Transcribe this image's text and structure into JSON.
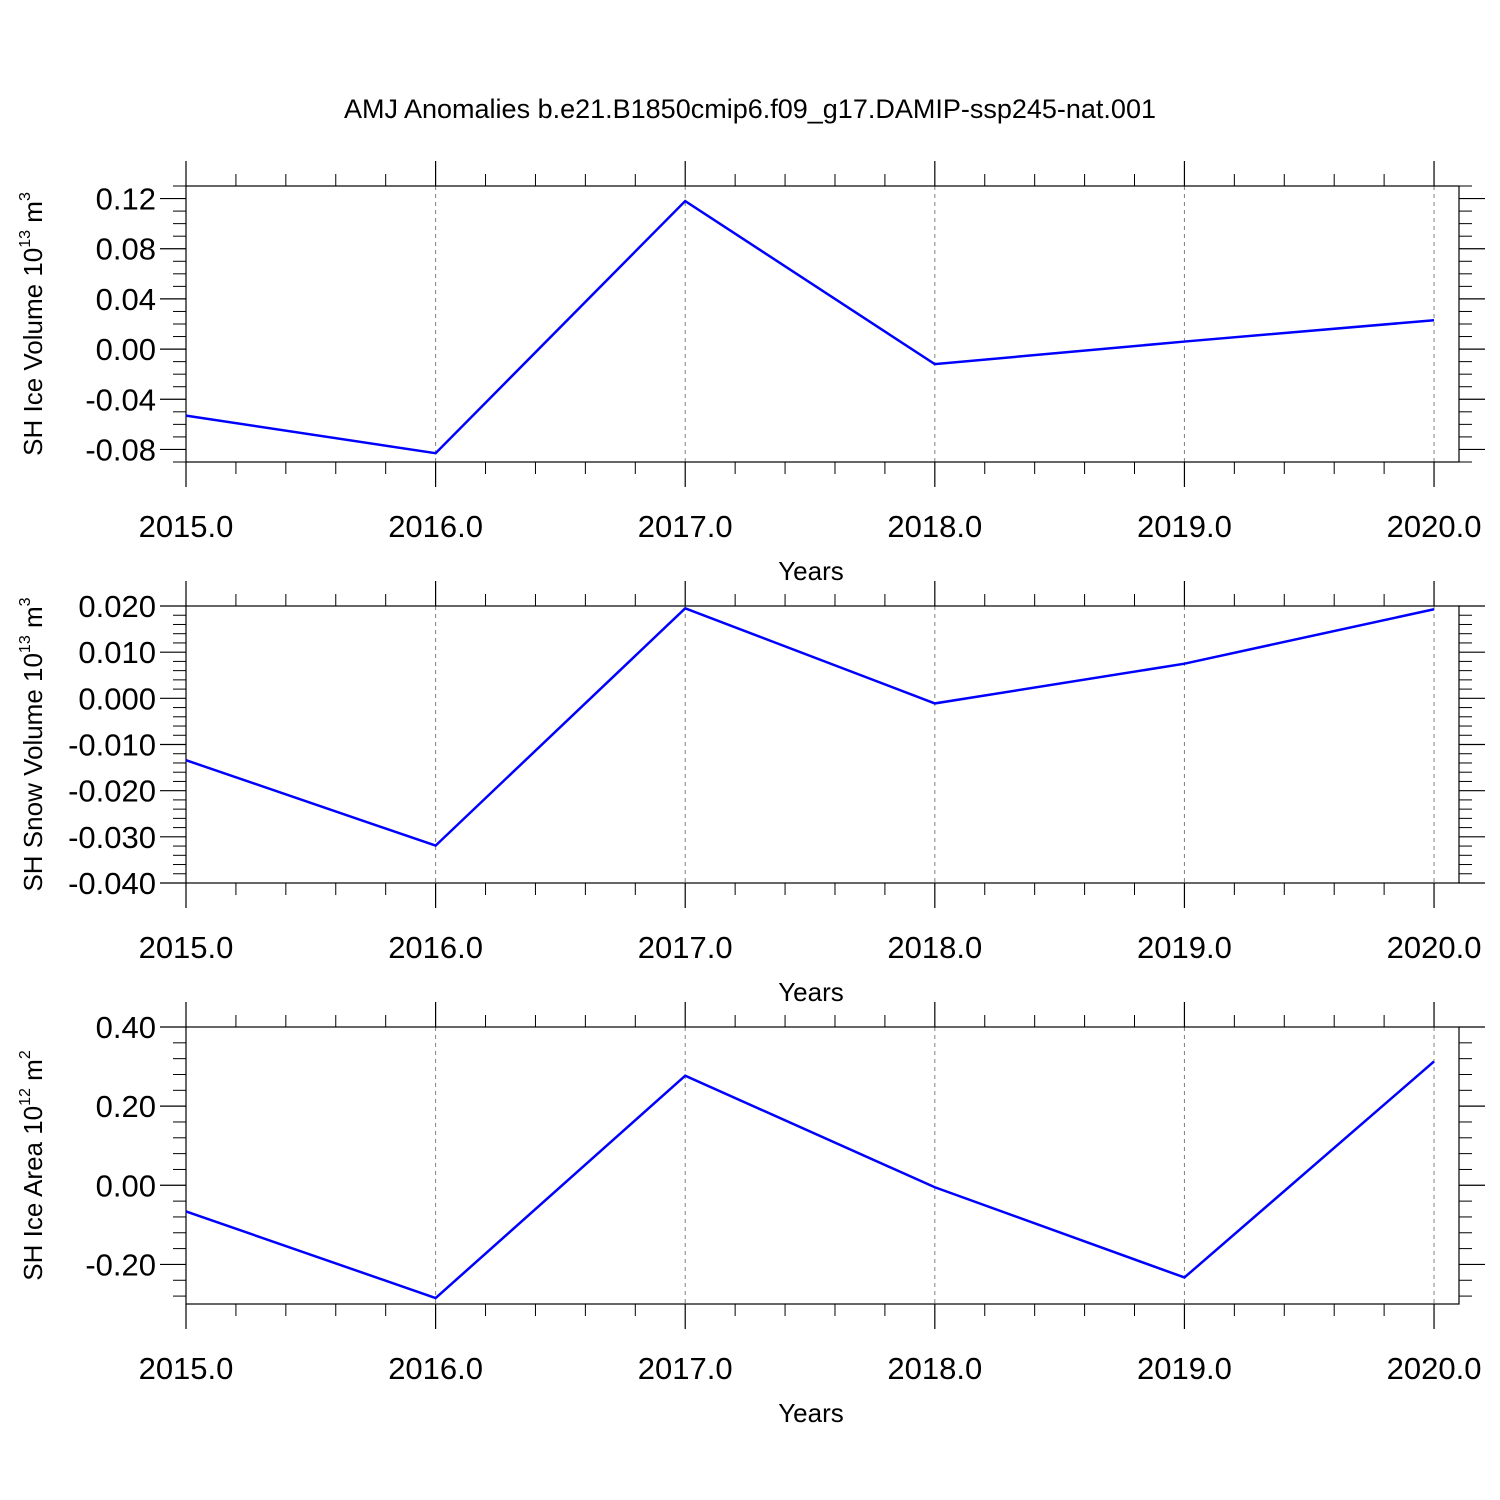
{
  "title": "AMJ Anomalies b.e21.B1850cmip6.f09_g17.DAMIP-ssp245-nat.001",
  "colors": {
    "series": "#0000ff",
    "axis": "#000000",
    "grid": "#808080",
    "background": "#ffffff"
  },
  "chart_data": [
    {
      "type": "line",
      "ylabel": "SH Ice Volume 10",
      "ylabel_exp": "13",
      "ylabel_unit": " m",
      "ylabel_unit_exp": "3",
      "xlabel": "Years",
      "x": [
        2015,
        2016,
        2017,
        2018,
        2019,
        2020
      ],
      "xtick_labels": [
        "2015.0",
        "2016.0",
        "2017.0",
        "2018.0",
        "2019.0",
        "2020.0"
      ],
      "ytick_values": [
        -0.08,
        -0.04,
        0.0,
        0.04,
        0.08,
        0.12
      ],
      "ytick_labels": [
        "-0.08",
        "-0.04",
        "0.00",
        "0.04",
        "0.08",
        "0.12"
      ],
      "xlim": [
        2015,
        2020.1
      ],
      "ylim": [
        -0.09,
        0.13
      ],
      "minor_step": 0.01,
      "grid": "vertical dashed",
      "series": [
        {
          "values": [
            -0.053,
            -0.083,
            0.118,
            -0.012,
            0.006,
            0.023
          ]
        }
      ]
    },
    {
      "type": "line",
      "ylabel": "SH Snow Volume 10",
      "ylabel_exp": "13",
      "ylabel_unit": " m",
      "ylabel_unit_exp": "3",
      "xlabel": "Years",
      "x": [
        2015,
        2016,
        2017,
        2018,
        2019,
        2020
      ],
      "xtick_labels": [
        "2015.0",
        "2016.0",
        "2017.0",
        "2018.0",
        "2019.0",
        "2020.0"
      ],
      "ytick_values": [
        -0.04,
        -0.03,
        -0.02,
        -0.01,
        0.0,
        0.01,
        0.02
      ],
      "ytick_labels": [
        "-0.040",
        "-0.030",
        "-0.020",
        "-0.010",
        "0.000",
        "0.010",
        "0.020"
      ],
      "xlim": [
        2015,
        2020.1
      ],
      "ylim": [
        -0.04,
        0.02
      ],
      "minor_step": 0.002,
      "grid": "vertical dashed",
      "series": [
        {
          "values": [
            -0.0134,
            -0.0319,
            0.0195,
            -0.0011,
            0.0075,
            0.0193
          ]
        }
      ]
    },
    {
      "type": "line",
      "ylabel": "SH Ice Area 10",
      "ylabel_exp": "12",
      "ylabel_unit": " m",
      "ylabel_unit_exp": "2",
      "xlabel": "Years",
      "x": [
        2015,
        2016,
        2017,
        2018,
        2019,
        2020
      ],
      "xtick_labels": [
        "2015.0",
        "2016.0",
        "2017.0",
        "2018.0",
        "2019.0",
        "2020.0"
      ],
      "ytick_values": [
        -0.2,
        0.0,
        0.2,
        0.4
      ],
      "ytick_labels": [
        "-0.20",
        "0.00",
        "0.20",
        "0.40"
      ],
      "xlim": [
        2015,
        2020.1
      ],
      "ylim": [
        -0.3,
        0.4
      ],
      "minor_step": 0.04,
      "grid": "vertical dashed",
      "series": [
        {
          "values": [
            -0.066,
            -0.285,
            0.277,
            -0.005,
            -0.233,
            0.313
          ]
        }
      ]
    }
  ]
}
